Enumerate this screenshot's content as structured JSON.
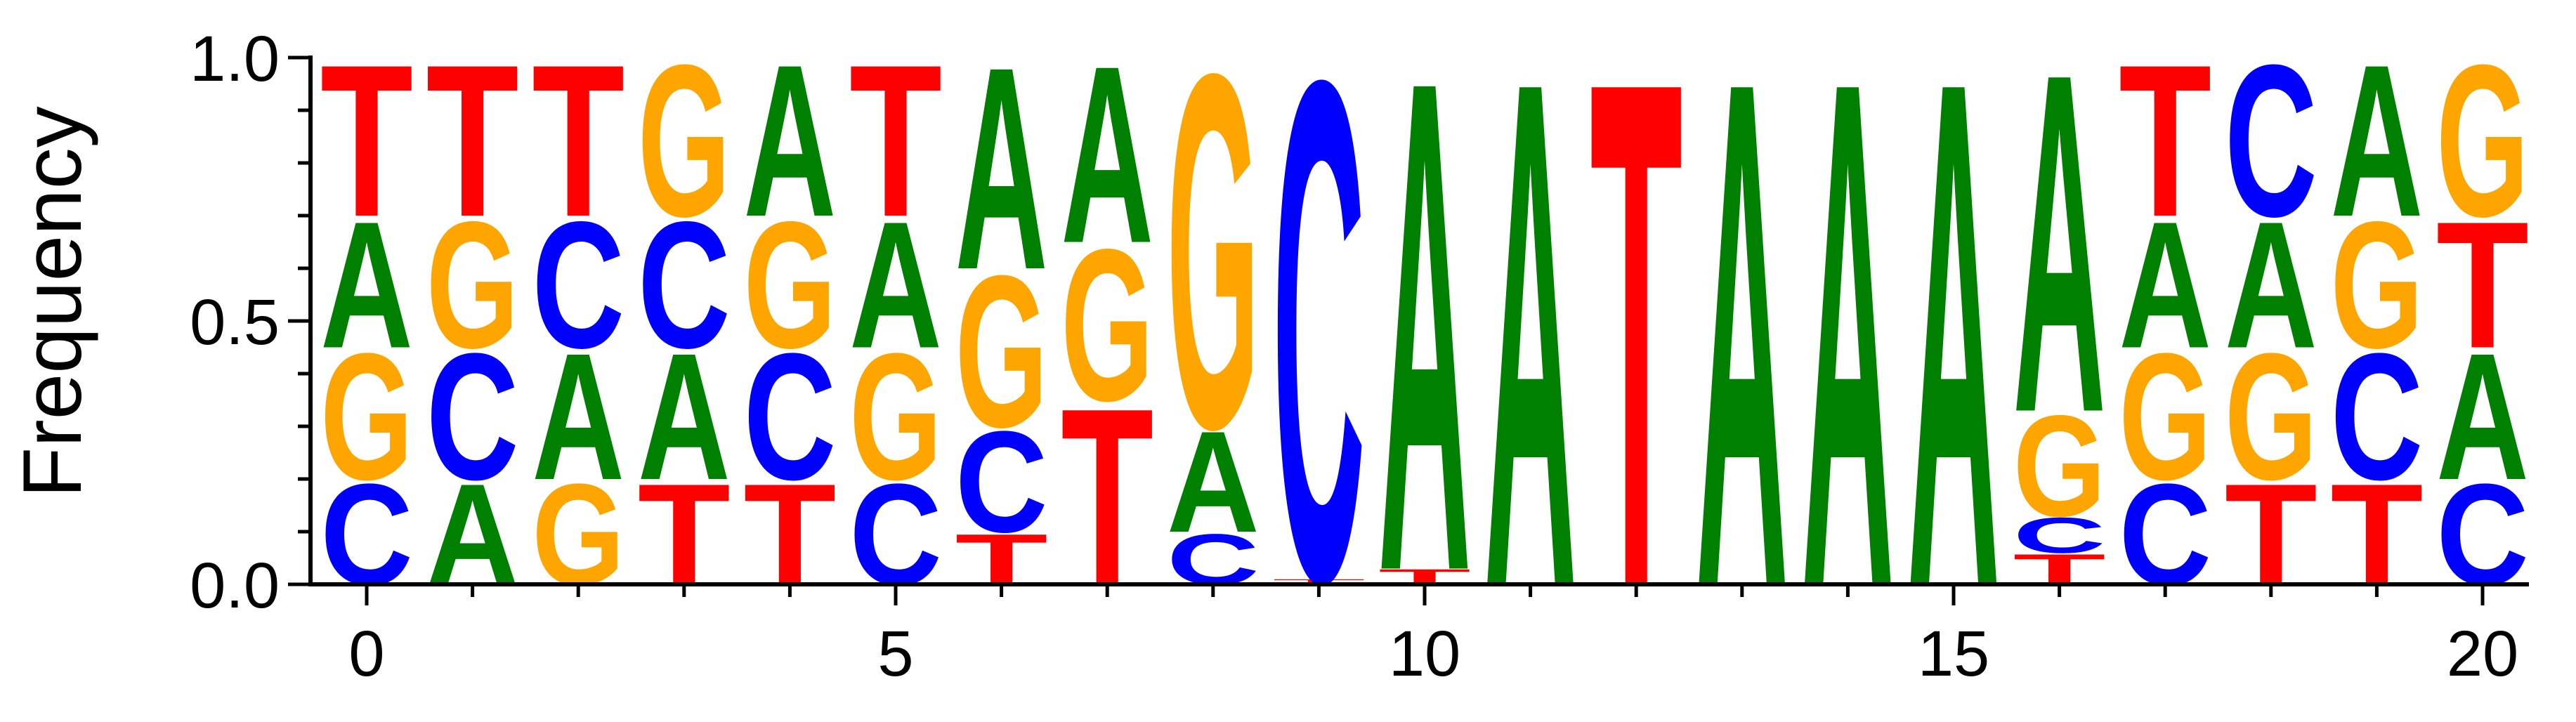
{
  "chart_data": {
    "type": "sequence-logo",
    "title": "",
    "xlabel": "",
    "ylabel": "Frequency",
    "xlim": [
      -0.5,
      20.5
    ],
    "ylim": [
      0,
      1
    ],
    "x_ticks": [
      0,
      5,
      10,
      15,
      20
    ],
    "x_tick_labels": [
      "0",
      "5",
      "10",
      "15",
      "20"
    ],
    "y_ticks": [
      0,
      0.5,
      1
    ],
    "y_tick_labels": [
      "0.0",
      "0.5",
      "1.0"
    ],
    "colors": {
      "A": "#008000",
      "C": "#0000ff",
      "G": "#ffa500",
      "T": "#ff0000"
    },
    "grid": false,
    "positions": [
      {
        "x": 0,
        "stack": [
          [
            "C",
            0.2
          ],
          [
            "G",
            0.25
          ],
          [
            "A",
            0.25
          ],
          [
            "T",
            0.3
          ]
        ]
      },
      {
        "x": 1,
        "stack": [
          [
            "A",
            0.2
          ],
          [
            "C",
            0.25
          ],
          [
            "G",
            0.25
          ],
          [
            "T",
            0.3
          ]
        ]
      },
      {
        "x": 2,
        "stack": [
          [
            "G",
            0.2
          ],
          [
            "A",
            0.25
          ],
          [
            "C",
            0.25
          ],
          [
            "T",
            0.3
          ]
        ]
      },
      {
        "x": 3,
        "stack": [
          [
            "T",
            0.2
          ],
          [
            "A",
            0.25
          ],
          [
            "C",
            0.25
          ],
          [
            "G",
            0.3
          ]
        ]
      },
      {
        "x": 4,
        "stack": [
          [
            "T",
            0.2
          ],
          [
            "C",
            0.25
          ],
          [
            "G",
            0.25
          ],
          [
            "A",
            0.3
          ]
        ]
      },
      {
        "x": 5,
        "stack": [
          [
            "C",
            0.2
          ],
          [
            "G",
            0.25
          ],
          [
            "A",
            0.25
          ],
          [
            "T",
            0.3
          ]
        ]
      },
      {
        "x": 6,
        "stack": [
          [
            "T",
            0.1
          ],
          [
            "C",
            0.2
          ],
          [
            "G",
            0.3
          ],
          [
            "A",
            0.4
          ]
        ]
      },
      {
        "x": 7,
        "stack": [
          [
            "T",
            0.35
          ],
          [
            "G",
            0.3
          ],
          [
            "A",
            0.35
          ]
        ]
      },
      {
        "x": 8,
        "stack": [
          [
            "C",
            0.1
          ],
          [
            "A",
            0.2
          ],
          [
            "G",
            0.7
          ]
        ]
      },
      {
        "x": 9,
        "stack": [
          [
            "T",
            0.01
          ],
          [
            "C",
            0.99
          ]
        ]
      },
      {
        "x": 10,
        "stack": [
          [
            "T",
            0.03
          ],
          [
            "A",
            0.97
          ]
        ]
      },
      {
        "x": 11,
        "stack": [
          [
            "A",
            1.0
          ]
        ]
      },
      {
        "x": 12,
        "stack": [
          [
            "T",
            1.0
          ]
        ]
      },
      {
        "x": 13,
        "stack": [
          [
            "A",
            1.0
          ]
        ]
      },
      {
        "x": 14,
        "stack": [
          [
            "A",
            1.0
          ]
        ]
      },
      {
        "x": 15,
        "stack": [
          [
            "A",
            1.0
          ]
        ]
      },
      {
        "x": 16,
        "stack": [
          [
            "T",
            0.06
          ],
          [
            "C",
            0.07
          ],
          [
            "G",
            0.2
          ],
          [
            "A",
            0.67
          ]
        ]
      },
      {
        "x": 17,
        "stack": [
          [
            "C",
            0.2
          ],
          [
            "G",
            0.25
          ],
          [
            "A",
            0.25
          ],
          [
            "T",
            0.3
          ]
        ]
      },
      {
        "x": 18,
        "stack": [
          [
            "T",
            0.2
          ],
          [
            "G",
            0.25
          ],
          [
            "A",
            0.25
          ],
          [
            "C",
            0.3
          ]
        ]
      },
      {
        "x": 19,
        "stack": [
          [
            "T",
            0.2
          ],
          [
            "C",
            0.25
          ],
          [
            "G",
            0.25
          ],
          [
            "A",
            0.3
          ]
        ]
      },
      {
        "x": 20,
        "stack": [
          [
            "C",
            0.2
          ],
          [
            "A",
            0.25
          ],
          [
            "T",
            0.25
          ],
          [
            "G",
            0.3
          ]
        ]
      }
    ]
  }
}
